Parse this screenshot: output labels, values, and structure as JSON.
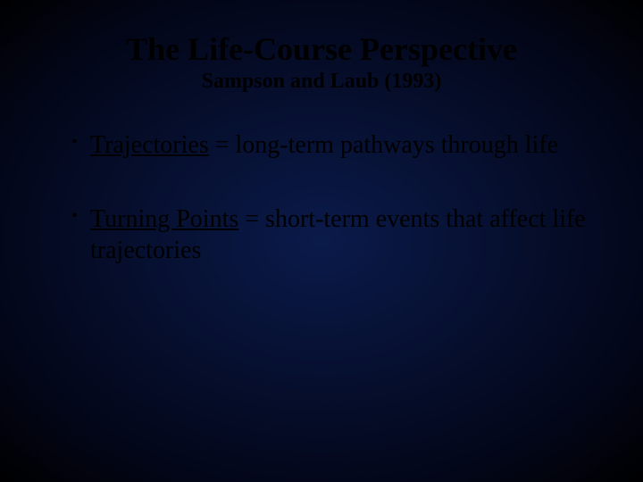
{
  "background": {
    "center_color": "#0a1a4a",
    "mid_color": "#030618",
    "edge_color": "#000000"
  },
  "text_color": "#000000",
  "title": {
    "text": "The Life-Course Perspective",
    "fontsize": 36,
    "weight": "bold"
  },
  "subtitle": {
    "text": "Sampson and Laub (1993)",
    "fontsize": 24,
    "weight": "bold"
  },
  "bullets": [
    {
      "term": "Trajectories",
      "definition": " = long-term pathways through life"
    },
    {
      "term": "Turning Points",
      "definition": " = short-term events that affect life trajectories"
    }
  ],
  "body_fontsize": 28,
  "bullet_glyph": "•"
}
